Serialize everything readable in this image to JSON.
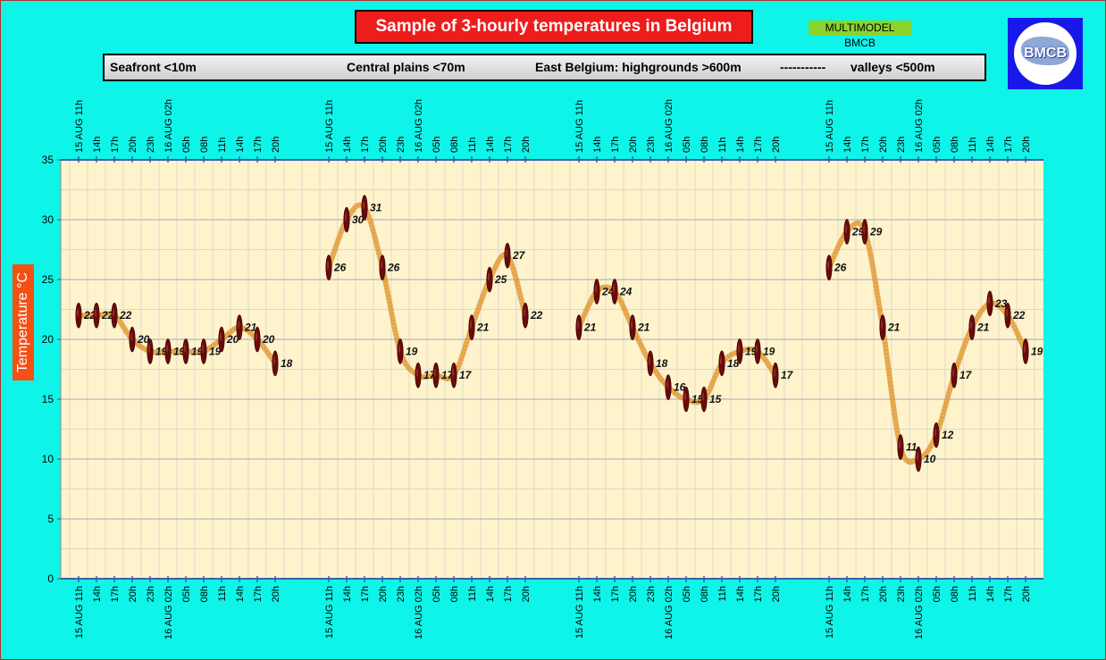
{
  "title": "Sample of 3-hourly temperatures in Belgium",
  "model_badge": "MULTIMODEL BMCB",
  "logo_text": "BMCB",
  "legend": [
    "Seafront <10m",
    "Central plains <70m",
    "East Belgium: highgrounds >600m",
    "-----------",
    "valleys <500m"
  ],
  "colors": {
    "background": "#0ff4e8",
    "plot_area": "#fff3cc",
    "grid": "#cfcfcf",
    "title_box": "#ee1c1c",
    "ylabel_box": "#f55014",
    "line": "#f0a030",
    "marker": "#6a0a0a",
    "badge": "#8bd42e",
    "logo": "#1818e8",
    "axis": "#3a5fa8"
  },
  "chart_data": {
    "type": "line",
    "ylabel": "Temperature   °C",
    "ylim": [
      0,
      35
    ],
    "yticks": [
      0,
      5,
      10,
      15,
      20,
      25,
      30,
      35
    ],
    "grid": true,
    "x_labels": [
      "15 AUG  11h",
      "14h",
      "17h",
      "20h",
      "23h",
      "16 AUG 02h",
      "05h",
      "08h",
      "11h",
      "14h",
      "17h",
      "20h"
    ],
    "series": [
      {
        "values": [
          22,
          22,
          22,
          20,
          19,
          19,
          19,
          19,
          20,
          21,
          20,
          18
        ]
      },
      {
        "values": [
          26,
          30,
          31,
          26,
          19,
          17,
          17,
          17,
          21,
          25,
          27,
          22
        ]
      },
      {
        "values": [
          21,
          24,
          24,
          21,
          18,
          16,
          15,
          15,
          18,
          19,
          19,
          17
        ]
      },
      {
        "values": [
          26,
          29,
          29,
          21,
          11,
          10,
          12,
          17,
          21,
          23,
          22,
          19
        ]
      }
    ]
  }
}
